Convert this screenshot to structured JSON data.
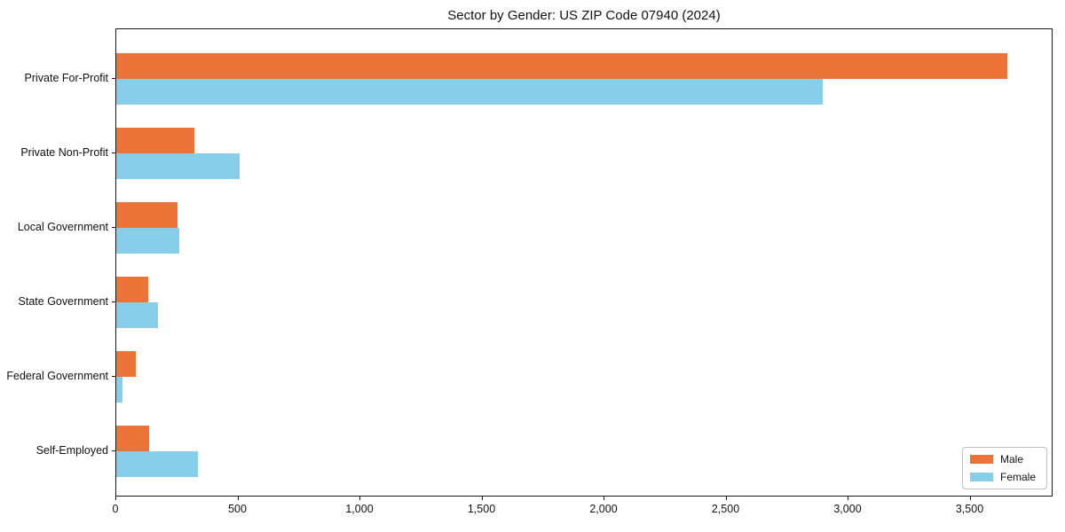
{
  "chart_data": {
    "type": "bar",
    "orientation": "horizontal",
    "title": "Sector by Gender: US ZIP Code 07940 (2024)",
    "categories": [
      "Private For-Profit",
      "Private Non-Profit",
      "Local Government",
      "State Government",
      "Federal Government",
      "Self-Employed"
    ],
    "series": [
      {
        "name": "Male",
        "color": "#EC7438",
        "values": [
          3650,
          320,
          252,
          129,
          81,
          136
        ]
      },
      {
        "name": "Female",
        "color": "#87CEEB",
        "values": [
          2895,
          505,
          258,
          172,
          24,
          336
        ]
      }
    ],
    "xlabel": "",
    "ylabel": "",
    "xlim": [
      0,
      3840
    ],
    "x_ticks": [
      0,
      500,
      1000,
      1500,
      2000,
      2500,
      3000,
      3500
    ],
    "x_tick_labels": [
      "0",
      "500",
      "1,000",
      "1,500",
      "2,000",
      "2,500",
      "3,000",
      "3,500"
    ],
    "grid": false,
    "legend": {
      "position": "lower-right",
      "entries": [
        "Male",
        "Female"
      ]
    },
    "colors": {
      "background": "#ffffff",
      "spine": "#1a1a1a",
      "text": "#111111"
    }
  }
}
